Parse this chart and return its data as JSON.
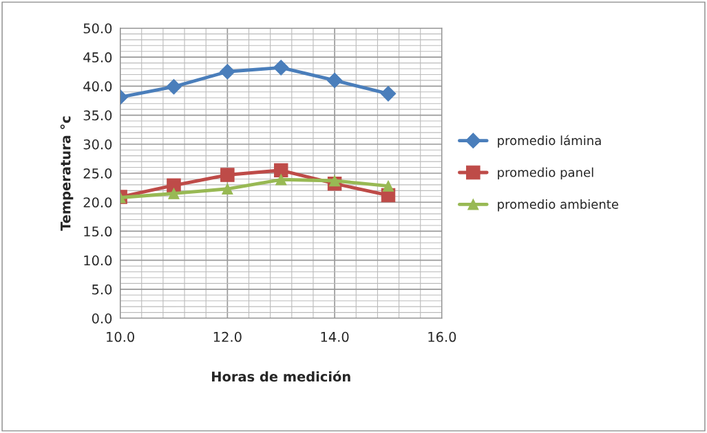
{
  "chart_data": {
    "type": "line",
    "xlabel": "Horas de medición",
    "ylabel": "Temperatura °c",
    "x": [
      10,
      11,
      12,
      13,
      14,
      15
    ],
    "series": [
      {
        "name": "promedio lámina",
        "color": "#4a7ebb",
        "marker": "diamond",
        "values": [
          38.1,
          39.9,
          42.5,
          43.2,
          41.0,
          38.7
        ]
      },
      {
        "name": "promedio panel",
        "color": "#be4b48",
        "marker": "square",
        "values": [
          20.9,
          22.9,
          24.7,
          25.5,
          23.2,
          21.2
        ]
      },
      {
        "name": "promedio ambiente",
        "color": "#98b954",
        "marker": "triangle",
        "values": [
          20.8,
          21.5,
          22.3,
          23.9,
          23.7,
          22.8
        ]
      }
    ],
    "xlim": [
      10,
      16
    ],
    "xticks": [
      {
        "value": 10,
        "label": "10.0"
      },
      {
        "value": 12,
        "label": "12.0"
      },
      {
        "value": 14,
        "label": "14.0"
      },
      {
        "value": 16,
        "label": "16.0"
      }
    ],
    "ylim": [
      0,
      50
    ],
    "yticks": [
      {
        "value": 0,
        "label": "0.0"
      },
      {
        "value": 5,
        "label": "5.0"
      },
      {
        "value": 10,
        "label": "10.0"
      },
      {
        "value": 15,
        "label": "15.0"
      },
      {
        "value": 20,
        "label": "20.0"
      },
      {
        "value": 25,
        "label": "25.0"
      },
      {
        "value": 30,
        "label": "30.0"
      },
      {
        "value": 35,
        "label": "35.0"
      },
      {
        "value": 40,
        "label": "40.0"
      },
      {
        "value": 45,
        "label": "45.0"
      },
      {
        "value": 50,
        "label": "50.0"
      }
    ],
    "grid": true,
    "legend": "right",
    "line_style": "solid"
  }
}
